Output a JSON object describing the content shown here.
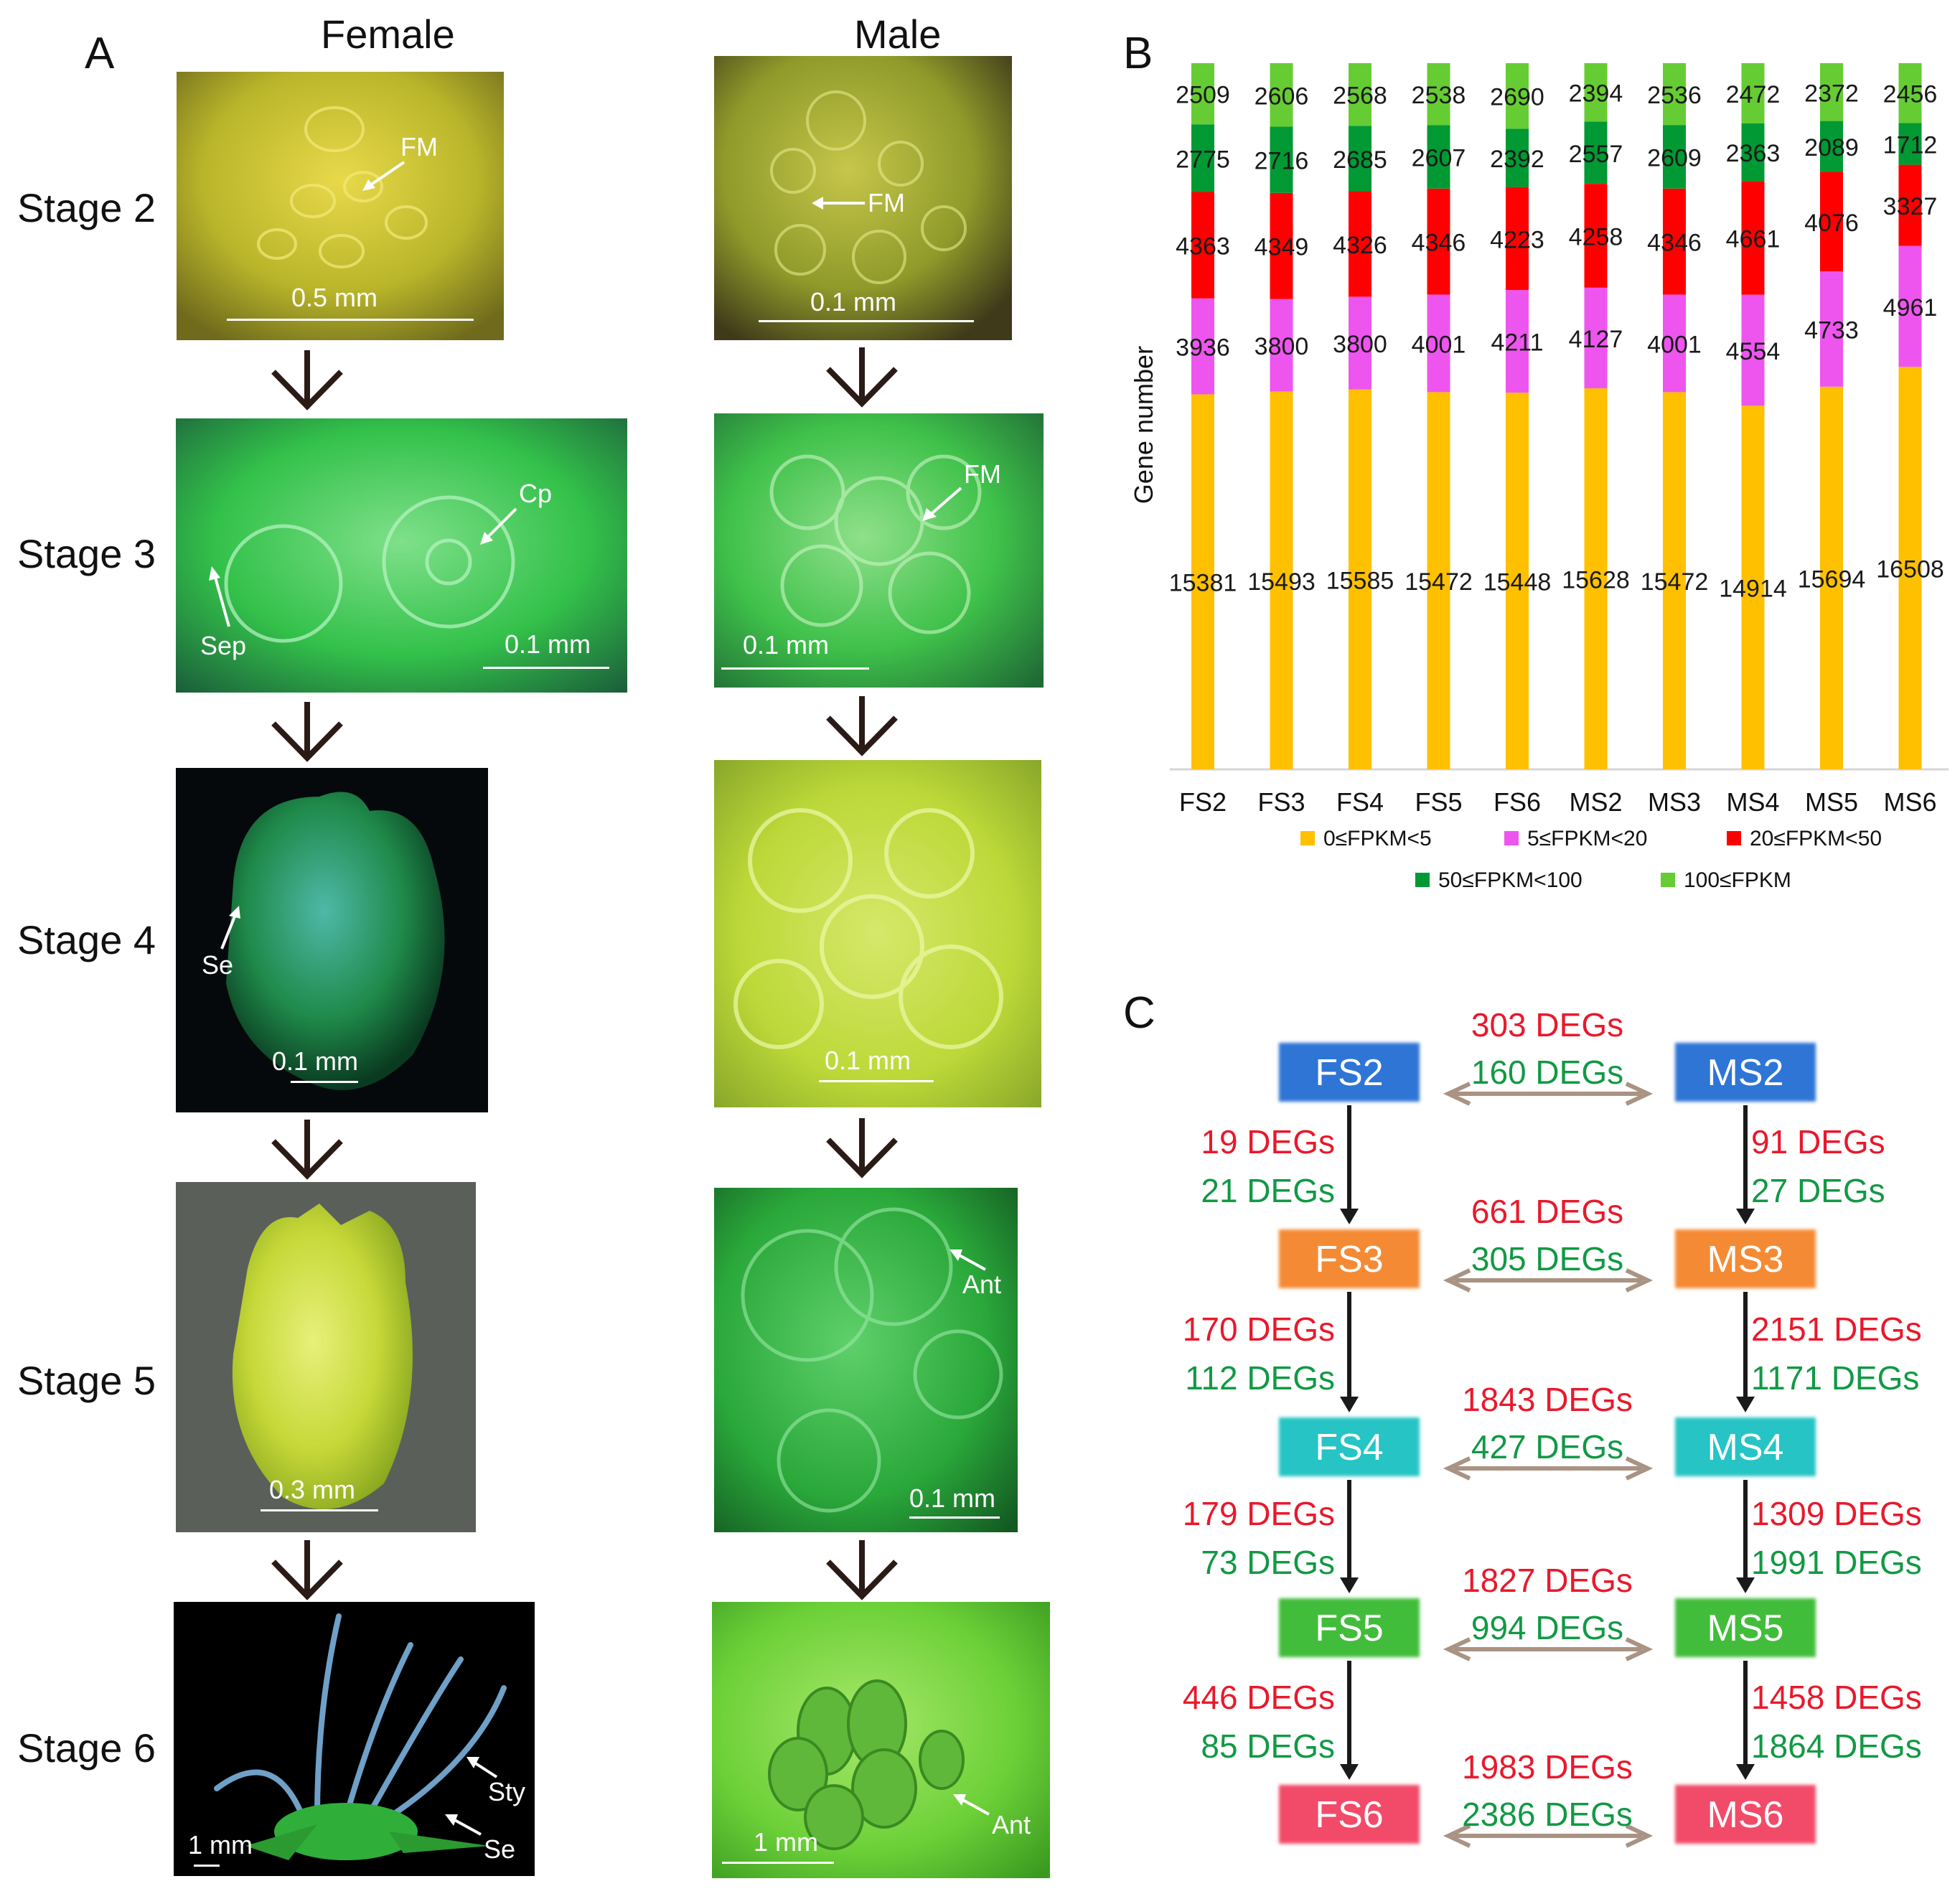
{
  "panel_a": {
    "letter": "A",
    "female_header": "Female",
    "male_header": "Male",
    "stages": [
      "Stage 2",
      "Stage 3",
      "Stage 4",
      "Stage 5",
      "Stage 6"
    ],
    "photos": {
      "female": [
        {
          "scale": "0.5 mm",
          "labels": [
            "FM"
          ]
        },
        {
          "scale": "0.1 mm",
          "labels": [
            "Cp",
            "Sep"
          ]
        },
        {
          "scale": "0.1 mm",
          "labels": [
            "Se"
          ]
        },
        {
          "scale": "0.3 mm",
          "labels": []
        },
        {
          "scale": "1 mm",
          "labels": [
            "Sty",
            "Se"
          ]
        }
      ],
      "male": [
        {
          "scale": "0.1 mm",
          "labels": [
            "FM"
          ]
        },
        {
          "scale": "0.1 mm",
          "labels": [
            "FM"
          ]
        },
        {
          "scale": "0.1 mm",
          "labels": []
        },
        {
          "scale": "0.1 mm",
          "labels": [
            "Ant"
          ]
        },
        {
          "scale": "1 mm",
          "labels": [
            "Ant"
          ]
        }
      ]
    }
  },
  "panel_b": {
    "letter": "B",
    "chart_data": {
      "type": "bar",
      "stacked": true,
      "orientation": "vertical",
      "ylabel": "Gene number",
      "categories": [
        "FS2",
        "FS3",
        "FS4",
        "FS5",
        "FS6",
        "MS2",
        "MS3",
        "MS4",
        "MS5",
        "MS6"
      ],
      "series": [
        {
          "name": "0≤FPKM<5",
          "color": "#FFC000",
          "values": [
            15381,
            15493,
            15585,
            15472,
            15448,
            15628,
            15472,
            14914,
            15694,
            16508
          ]
        },
        {
          "name": "5≤FPKM<20",
          "color": "#EE55EE",
          "values": [
            3936,
            3800,
            3800,
            4001,
            4211,
            4127,
            4001,
            4554,
            4733,
            4961
          ]
        },
        {
          "name": "20≤FPKM<50",
          "color": "#FF0000",
          "values": [
            4363,
            4349,
            4326,
            4346,
            4223,
            4258,
            4346,
            4661,
            4076,
            3327
          ]
        },
        {
          "name": "50≤FPKM<100",
          "color": "#009933",
          "values": [
            2775,
            2716,
            2685,
            2607,
            2392,
            2557,
            2609,
            2363,
            2089,
            1712
          ]
        },
        {
          "name": "100≤FPKM",
          "color": "#66CC33",
          "values": [
            2509,
            2606,
            2568,
            2538,
            2690,
            2394,
            2536,
            2472,
            2372,
            2456
          ]
        }
      ],
      "legend_position": "bottom",
      "y_axis_shown": false,
      "grid": false,
      "data_labels": true
    }
  },
  "panel_c": {
    "letter": "C",
    "female_nodes": [
      {
        "label": "FS2",
        "color": "#2E75D6"
      },
      {
        "label": "FS3",
        "color": "#F58A35"
      },
      {
        "label": "FS4",
        "color": "#27C4C4"
      },
      {
        "label": "FS5",
        "color": "#43BD3A"
      },
      {
        "label": "FS6",
        "color": "#F24C69"
      }
    ],
    "male_nodes": [
      {
        "label": "MS2",
        "color": "#2E75D6"
      },
      {
        "label": "MS3",
        "color": "#F58A35"
      },
      {
        "label": "MS4",
        "color": "#27C4C4"
      },
      {
        "label": "MS5",
        "color": "#43BD3A"
      },
      {
        "label": "MS6",
        "color": "#F24C69"
      }
    ],
    "up_color": "#E8192C",
    "down_color": "#119944",
    "between_sexes": [
      {
        "up": "303 DEGs",
        "down": "160 DEGs"
      },
      {
        "up": "661 DEGs",
        "down": "305 DEGs"
      },
      {
        "up": "1843 DEGs",
        "down": "427 DEGs"
      },
      {
        "up": "1827 DEGs",
        "down": "994 DEGs"
      },
      {
        "up": "1983 DEGs",
        "down": "2386 DEGs"
      }
    ],
    "female_transitions": [
      {
        "up": "19 DEGs",
        "down": "21 DEGs"
      },
      {
        "up": "170 DEGs",
        "down": "112 DEGs"
      },
      {
        "up": "179 DEGs",
        "down": "73 DEGs"
      },
      {
        "up": "446 DEGs",
        "down": "85 DEGs"
      }
    ],
    "male_transitions": [
      {
        "up": "91 DEGs",
        "down": "27 DEGs"
      },
      {
        "up": "2151 DEGs",
        "down": "1171 DEGs"
      },
      {
        "up": "1309 DEGs",
        "down": "1991 DEGs"
      },
      {
        "up": "1458 DEGs",
        "down": "1864 DEGs"
      }
    ]
  }
}
